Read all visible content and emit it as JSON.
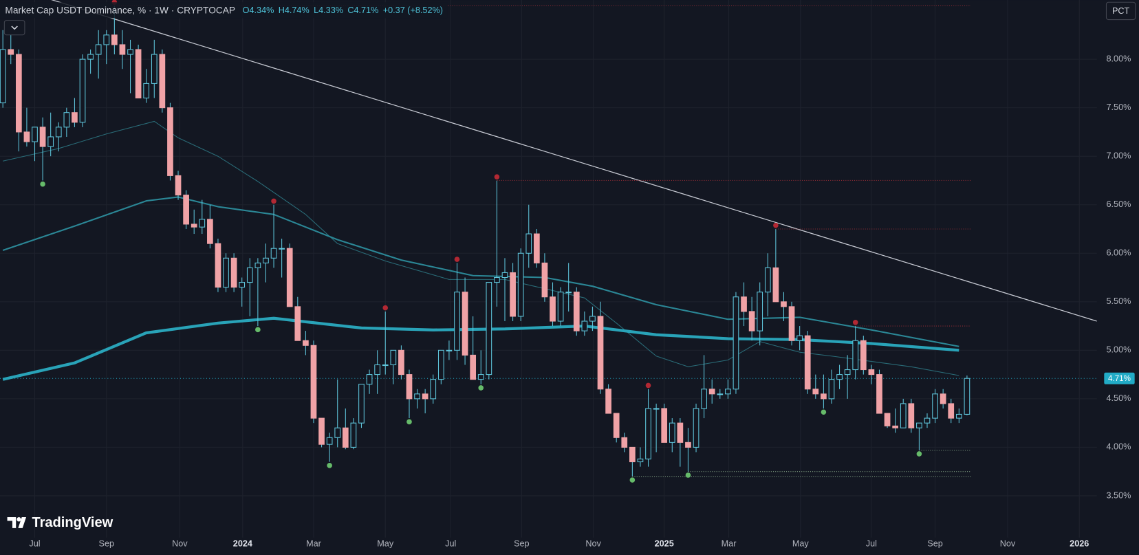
{
  "chart_data": {
    "type": "candlestick",
    "title": "Market Cap USDT Dominance, % · 1W · CRYPTOCAP",
    "ohlc_labels": [
      "O4.34%",
      "H4.74%",
      "L4.33%",
      "C4.71%",
      "+0.37 (+8.52%)"
    ],
    "button": "PCT",
    "logo": "TradingView",
    "xlim": [
      -0.36,
      137.3
    ],
    "ylim": [
      3.07,
      8.61
    ],
    "grid": true,
    "up_color": "#5fc6dc",
    "down_color": "#f0a2a6",
    "yticks": [
      {
        "value": 3.5,
        "label": "3.50%"
      },
      {
        "value": 4,
        "label": "4.00%"
      },
      {
        "value": 4.5,
        "label": "4.50%"
      },
      {
        "value": 5,
        "label": "5.00%"
      },
      {
        "value": 5.5,
        "label": "5.50%"
      },
      {
        "value": 6,
        "label": "6.00%"
      },
      {
        "value": 6.5,
        "label": "6.50%"
      },
      {
        "value": 7,
        "label": "7.00%"
      },
      {
        "value": 7.5,
        "label": "7.50%"
      },
      {
        "value": 8,
        "label": "8.00%"
      }
    ],
    "xticks": [
      {
        "value": 4,
        "label": "Jul"
      },
      {
        "value": 13,
        "label": "Sep"
      },
      {
        "value": 22.2,
        "label": "Nov"
      },
      {
        "value": 30.1,
        "label": "2024"
      },
      {
        "value": 39,
        "label": "Mar"
      },
      {
        "value": 48,
        "label": "May"
      },
      {
        "value": 56.2,
        "label": "Jul"
      },
      {
        "value": 65.1,
        "label": "Sep"
      },
      {
        "value": 74.1,
        "label": "Nov"
      },
      {
        "value": 83,
        "label": "2025"
      },
      {
        "value": 91.1,
        "label": "Mar"
      },
      {
        "value": 100.1,
        "label": "May"
      },
      {
        "value": 109,
        "label": "Jul"
      },
      {
        "value": 117,
        "label": "Sep"
      },
      {
        "value": 126.1,
        "label": "Nov"
      },
      {
        "value": 135.1,
        "label": "2026"
      }
    ],
    "open": [
      7.55,
      8.1,
      8.05,
      7.25,
      7.15,
      7.3,
      7.1,
      7.2,
      7.3,
      7.45,
      7.35,
      8.0,
      8.05,
      8.15,
      8.25,
      8.15,
      8.05,
      8.1,
      7.6,
      7.75,
      8.05,
      7.5,
      6.8,
      6.6,
      6.3,
      6.27,
      6.35,
      6.1,
      5.65,
      5.95,
      5.65,
      5.7,
      5.85,
      5.9,
      5.95,
      6.05,
      6.05,
      5.45,
      5.1,
      5.05,
      4.3,
      4.03,
      4.1,
      4.2,
      4.0,
      4.25,
      4.65,
      4.75,
      4.85,
      4.85,
      5.0,
      4.75,
      4.5,
      4.55,
      4.5,
      4.7,
      5.0,
      5.0,
      5.6,
      4.95,
      4.7,
      4.75,
      5.7,
      5.75,
      5.8,
      5.35,
      6.0,
      6.2,
      5.9,
      5.55,
      5.3,
      5.6,
      5.6,
      5.2,
      5.3,
      5.35,
      4.6,
      4.35,
      4.1,
      4.0,
      3.85,
      3.88,
      4.4,
      4.4,
      4.05,
      4.25,
      4.05,
      4.0,
      4.4,
      4.6,
      4.55,
      4.55,
      4.6,
      5.55,
      5.4,
      5.2,
      5.6,
      5.85,
      5.5,
      5.45,
      5.1,
      5.15,
      4.6,
      4.55,
      4.5,
      4.7,
      4.75,
      4.8,
      5.1,
      4.8,
      4.75,
      4.35,
      4.22,
      4.2,
      4.45,
      4.2,
      4.25,
      4.3,
      4.55,
      4.45,
      4.3,
      4.34
    ],
    "high": [
      8.3,
      8.25,
      8.1,
      7.5,
      7.3,
      7.4,
      7.45,
      7.35,
      7.5,
      7.6,
      8.05,
      8.1,
      8.3,
      8.3,
      8.55,
      8.3,
      8.2,
      8.15,
      7.9,
      8.2,
      8.1,
      7.55,
      6.85,
      6.65,
      6.45,
      6.55,
      6.5,
      6.15,
      6.0,
      6.0,
      5.75,
      5.95,
      5.95,
      6.1,
      6.5,
      6.15,
      6.1,
      5.55,
      5.2,
      5.1,
      4.3,
      4.15,
      4.7,
      4.4,
      4.3,
      4.65,
      4.8,
      5.0,
      5.4,
      5.0,
      5.05,
      4.8,
      4.6,
      4.6,
      4.75,
      5.0,
      5.1,
      5.9,
      5.75,
      5.35,
      5.0,
      5.7,
      6.75,
      5.95,
      5.9,
      6.05,
      6.5,
      6.25,
      6.0,
      5.7,
      5.65,
      5.9,
      5.65,
      5.4,
      5.45,
      5.5,
      4.65,
      4.35,
      4.15,
      4.0,
      4.0,
      4.6,
      4.45,
      4.45,
      4.3,
      4.3,
      4.2,
      4.45,
      4.95,
      4.7,
      4.6,
      4.7,
      5.6,
      5.7,
      5.55,
      5.7,
      6.0,
      6.25,
      5.6,
      5.5,
      5.25,
      5.2,
      4.75,
      4.75,
      4.8,
      4.85,
      4.95,
      5.25,
      5.15,
      4.85,
      4.8,
      4.35,
      4.4,
      4.5,
      4.5,
      4.25,
      4.35,
      4.6,
      4.6,
      4.5,
      4.4,
      4.74
    ],
    "low": [
      7.5,
      7.95,
      7.05,
      7.1,
      6.95,
      6.75,
      7.0,
      7.05,
      7.2,
      7.3,
      7.3,
      7.85,
      7.8,
      7.95,
      8.05,
      7.9,
      7.65,
      7.6,
      7.55,
      7.6,
      7.45,
      6.75,
      6.55,
      6.25,
      6.2,
      6.2,
      6.05,
      5.6,
      5.6,
      5.6,
      5.45,
      5.35,
      5.25,
      5.7,
      5.85,
      5.75,
      5.45,
      5.1,
      4.95,
      4.25,
      4.0,
      3.85,
      4.0,
      3.98,
      3.98,
      4.2,
      4.55,
      4.55,
      4.75,
      4.65,
      4.7,
      4.3,
      4.4,
      4.35,
      4.45,
      4.65,
      4.9,
      4.9,
      4.85,
      4.7,
      4.65,
      4.7,
      5.45,
      5.3,
      5.3,
      5.3,
      5.85,
      5.85,
      5.5,
      5.25,
      5.25,
      5.4,
      5.15,
      5.15,
      5.2,
      4.55,
      4.35,
      4.05,
      3.95,
      3.7,
      3.8,
      3.8,
      3.95,
      4.05,
      3.95,
      3.8,
      3.75,
      3.95,
      4.3,
      4.45,
      4.5,
      4.5,
      4.55,
      5.25,
      5.1,
      5.05,
      5.35,
      5.5,
      5.3,
      5.05,
      5.0,
      4.55,
      4.5,
      4.4,
      4.45,
      4.6,
      4.5,
      4.7,
      4.75,
      4.65,
      4.35,
      4.2,
      4.15,
      4.2,
      4.15,
      3.97,
      4.2,
      4.25,
      4.4,
      4.25,
      4.25,
      4.33
    ],
    "close": [
      8.1,
      8.05,
      7.25,
      7.15,
      7.3,
      7.1,
      7.2,
      7.3,
      7.45,
      7.35,
      8.0,
      8.05,
      8.15,
      8.25,
      8.15,
      8.05,
      8.1,
      7.6,
      7.75,
      8.05,
      7.5,
      6.8,
      6.6,
      6.3,
      6.27,
      6.35,
      6.1,
      5.65,
      5.95,
      5.65,
      5.7,
      5.85,
      5.9,
      5.95,
      6.05,
      6.05,
      5.45,
      5.1,
      5.05,
      4.3,
      4.03,
      4.1,
      4.2,
      4.0,
      4.25,
      4.65,
      4.75,
      4.85,
      4.85,
      5.0,
      4.75,
      4.5,
      4.55,
      4.5,
      4.7,
      5.0,
      5.0,
      5.6,
      4.95,
      4.7,
      4.75,
      5.7,
      5.75,
      5.8,
      5.35,
      6.0,
      6.2,
      5.9,
      5.55,
      5.3,
      5.6,
      5.6,
      5.2,
      5.3,
      5.35,
      4.6,
      4.35,
      4.1,
      4.0,
      3.85,
      3.88,
      4.4,
      4.4,
      4.05,
      4.25,
      4.05,
      4.0,
      4.4,
      4.6,
      4.55,
      4.55,
      4.6,
      5.55,
      5.4,
      5.2,
      5.6,
      5.85,
      5.5,
      5.45,
      5.1,
      5.15,
      4.6,
      4.55,
      4.5,
      4.7,
      4.75,
      4.8,
      5.1,
      4.8,
      4.75,
      4.35,
      4.22,
      4.2,
      4.45,
      4.2,
      4.25,
      4.3,
      4.55,
      4.45,
      4.3,
      4.34,
      4.71
    ],
    "series": [
      {
        "color": "#2a6c78",
        "width": 1,
        "x": [
          0,
          7,
          13,
          19,
          22,
          27,
          32,
          38,
          42,
          48,
          56,
          63,
          73,
          77,
          82,
          86,
          91,
          95,
          100,
          104,
          114,
          120
        ],
        "values": [
          6.95,
          7.08,
          7.23,
          7.36,
          7.19,
          7.0,
          6.74,
          6.4,
          6.1,
          5.92,
          5.73,
          5.73,
          5.54,
          5.28,
          4.94,
          4.83,
          4.9,
          5.09,
          4.98,
          4.94,
          4.83,
          4.74
        ]
      },
      {
        "color": "#2b8796",
        "width": 2,
        "x": [
          0,
          9,
          18,
          22,
          27,
          34,
          42,
          50,
          59,
          68,
          74,
          82,
          91,
          100,
          109,
          120
        ],
        "values": [
          6.03,
          6.28,
          6.54,
          6.58,
          6.48,
          6.4,
          6.14,
          5.93,
          5.77,
          5.75,
          5.66,
          5.47,
          5.32,
          5.34,
          5.21,
          5.04
        ]
      },
      {
        "color": "#29a3b8",
        "width": 4,
        "x": [
          0,
          9,
          18,
          27,
          34,
          45,
          54,
          63,
          73,
          82,
          91,
          100,
          109,
          120
        ],
        "values": [
          4.7,
          4.87,
          5.18,
          5.28,
          5.33,
          5.23,
          5.21,
          5.22,
          5.25,
          5.16,
          5.12,
          5.11,
          5.07,
          5.0
        ]
      }
    ],
    "trendline": {
      "color": "#c8cbd4",
      "x": [
        10.6,
        137.3
      ],
      "values": [
        8.5,
        5.3
      ]
    },
    "pivot_highs": {
      "color": "#b22833",
      "points": [
        {
          "x": 14,
          "value": 8.55,
          "level": true
        },
        {
          "x": 34,
          "value": 6.5
        },
        {
          "x": 48,
          "value": 5.4
        },
        {
          "x": 57,
          "value": 5.9
        },
        {
          "x": 62,
          "value": 6.75,
          "level": true
        },
        {
          "x": 81,
          "value": 4.6
        },
        {
          "x": 97,
          "value": 6.25,
          "level": true
        },
        {
          "x": 107,
          "value": 5.25,
          "level": true
        }
      ]
    },
    "pivot_lows": {
      "color": "#66bb6a",
      "points": [
        {
          "x": 5,
          "value": 6.75
        },
        {
          "x": 32,
          "value": 5.25
        },
        {
          "x": 41,
          "value": 3.85
        },
        {
          "x": 51,
          "value": 4.3
        },
        {
          "x": 60,
          "value": 4.65
        },
        {
          "x": 79,
          "value": 3.7,
          "level": true
        },
        {
          "x": 86,
          "value": 3.75,
          "level": true
        },
        {
          "x": 103,
          "value": 4.4
        },
        {
          "x": 115,
          "value": 3.97,
          "level": true
        }
      ]
    },
    "last": {
      "value": 4.71,
      "label": "4.71%",
      "color": "#22abc6"
    }
  }
}
